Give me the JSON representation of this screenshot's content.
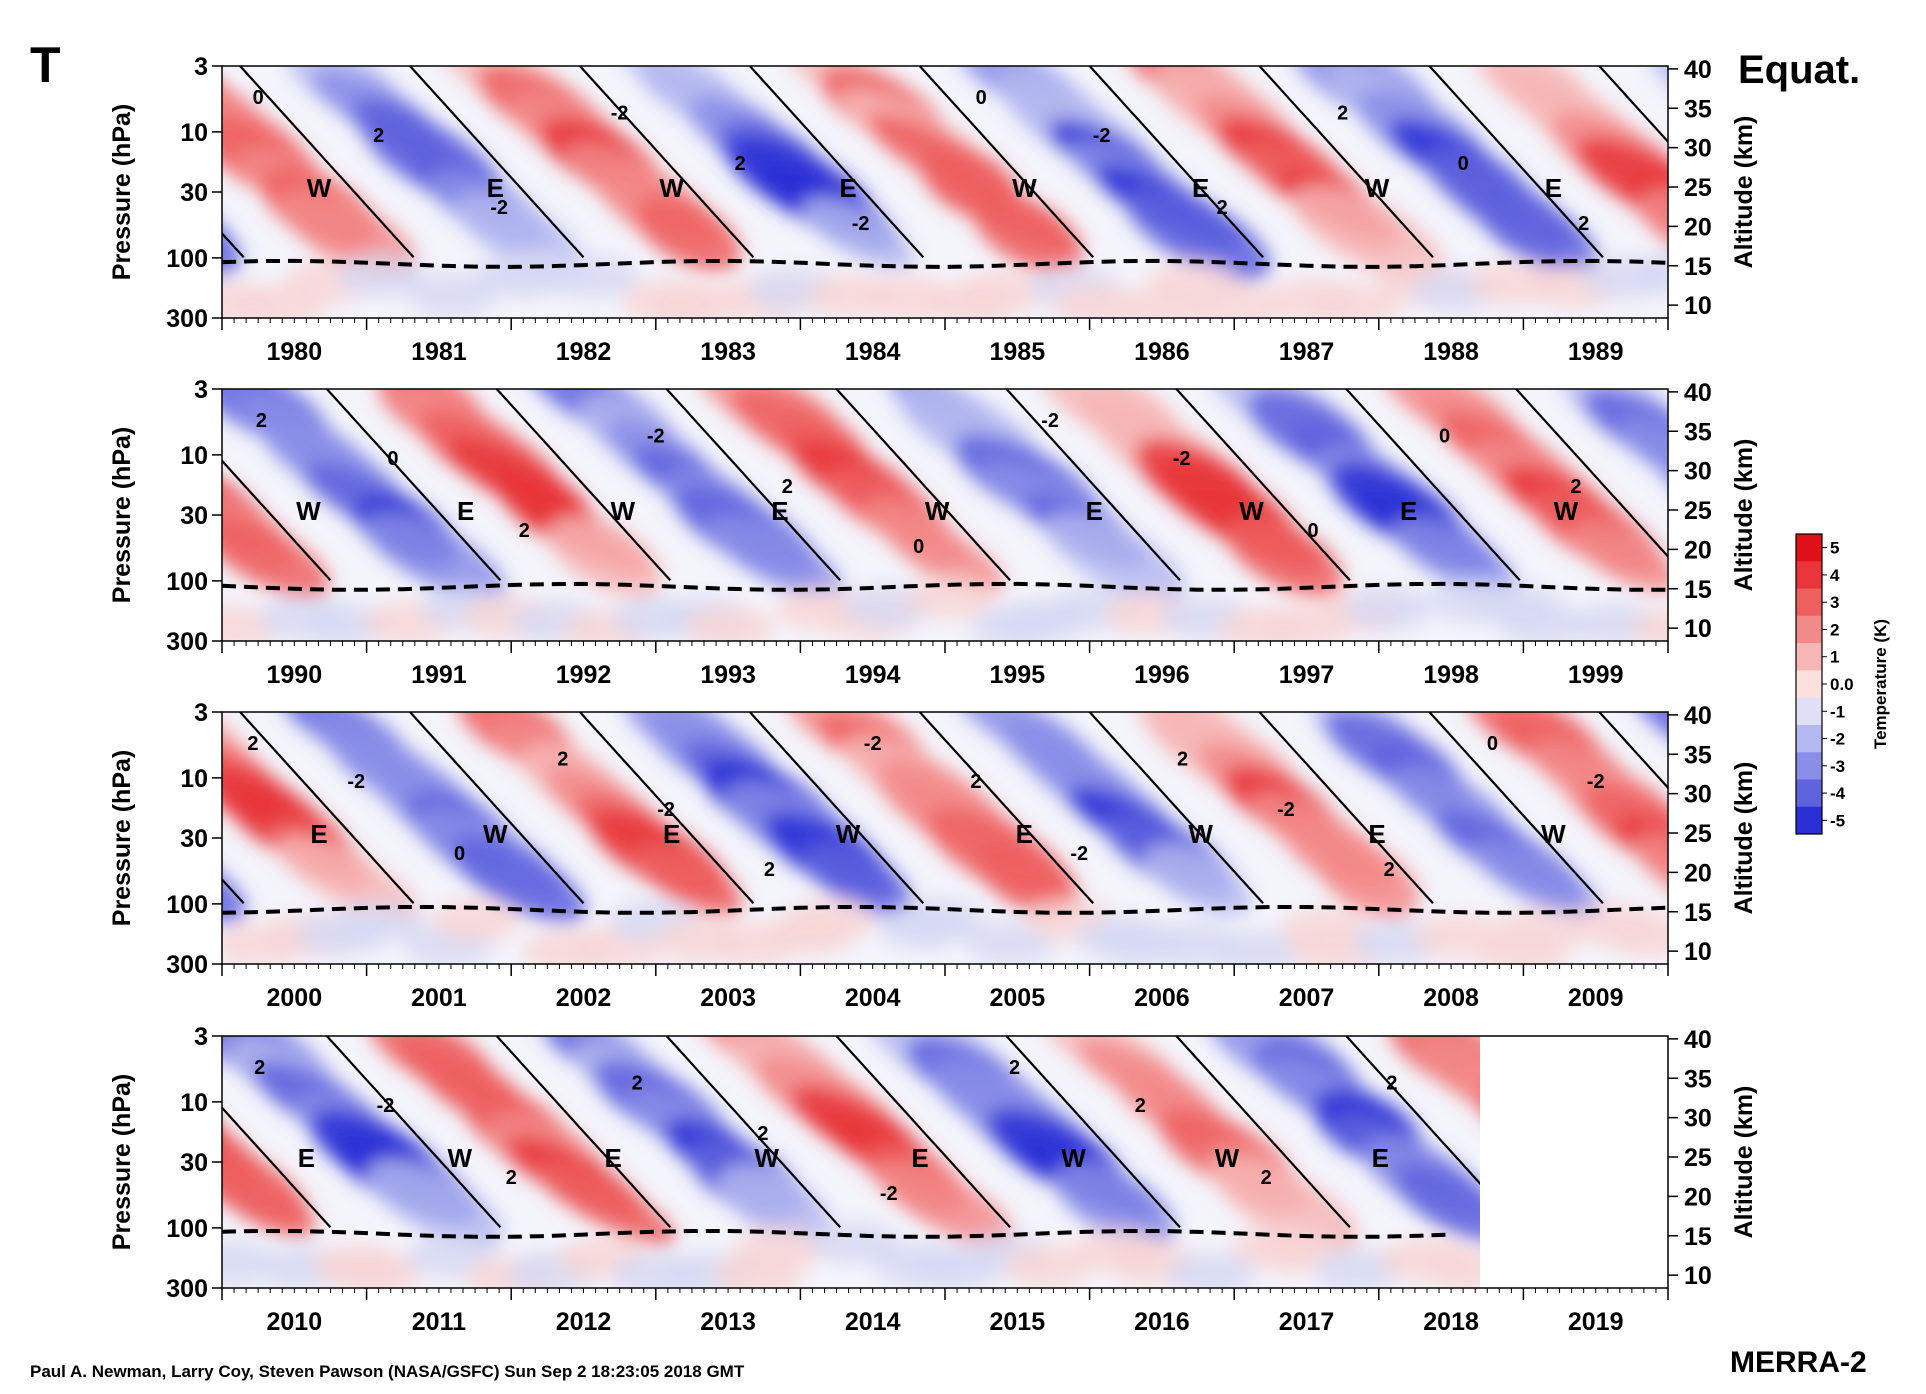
{
  "figure": {
    "variable_label": "T",
    "region_label": "Equat.",
    "credit": "Paul A. Newman, Larry Coy, Steven Pawson (NASA/GSFC) Sun Sep  2 18:23:05 2018 GMT",
    "product": "MERRA-2"
  },
  "chart_data": [
    {
      "type": "heatmap",
      "title": "",
      "xlabel": "",
      "ylabel": "Pressure (hPa)",
      "y2label": "Altitude (km)",
      "x_ticks": [
        "1980",
        "1981",
        "1982",
        "1983",
        "1984",
        "1985",
        "1986",
        "1987",
        "1988",
        "1989"
      ],
      "y_ticks": [
        "3",
        "10",
        "30",
        "100",
        "300"
      ],
      "y2_ticks": [
        "40",
        "35",
        "30",
        "25",
        "20",
        "15",
        "10"
      ],
      "x_range": [
        1979.5,
        1989.5
      ],
      "y_range_hpa": [
        300,
        3
      ],
      "phase_labels": [
        "W",
        "E",
        "W",
        "E",
        "W",
        "E",
        "W",
        "E"
      ],
      "contour_labels": [
        "0",
        "2",
        "-2",
        "-2",
        "2",
        "-2",
        "0",
        "-2",
        "2",
        "2",
        "0",
        "2"
      ],
      "values_note": "filled contours of equatorial temperature anomaly (K)",
      "tropopause": "dashed line near 100 hPa",
      "data_end": 1989.5
    },
    {
      "type": "heatmap",
      "title": "",
      "xlabel": "",
      "ylabel": "Pressure (hPa)",
      "y2label": "Altitude (km)",
      "x_ticks": [
        "1990",
        "1991",
        "1992",
        "1993",
        "1994",
        "1995",
        "1996",
        "1997",
        "1998",
        "1999"
      ],
      "y_ticks": [
        "3",
        "10",
        "30",
        "100",
        "300"
      ],
      "y2_ticks": [
        "40",
        "35",
        "30",
        "25",
        "20",
        "15",
        "10"
      ],
      "x_range": [
        1989.5,
        1999.5
      ],
      "y_range_hpa": [
        300,
        3
      ],
      "phase_labels": [
        "W",
        "E",
        "W",
        "E",
        "W",
        "E",
        "W",
        "E",
        "W"
      ],
      "contour_labels": [
        "2",
        "0",
        "2",
        "-2",
        "2",
        "0",
        "-2",
        "-2",
        "0",
        "0",
        "2"
      ],
      "tropopause": "dashed line near 100 hPa",
      "data_end": 1999.5
    },
    {
      "type": "heatmap",
      "title": "",
      "xlabel": "",
      "ylabel": "Pressure (hPa)",
      "y2label": "Altitude (km)",
      "x_ticks": [
        "2000",
        "2001",
        "2002",
        "2003",
        "2004",
        "2005",
        "2006",
        "2007",
        "2008",
        "2009"
      ],
      "y_ticks": [
        "3",
        "10",
        "30",
        "100",
        "300"
      ],
      "y2_ticks": [
        "40",
        "35",
        "30",
        "25",
        "20",
        "15",
        "10"
      ],
      "x_range": [
        1999.5,
        2009.5
      ],
      "y_range_hpa": [
        300,
        3
      ],
      "phase_labels": [
        "E",
        "W",
        "E",
        "W",
        "E",
        "W",
        "E",
        "W"
      ],
      "contour_labels": [
        "2",
        "-2",
        "0",
        "2",
        "-2",
        "2",
        "-2",
        "2",
        "-2",
        "2",
        "-2",
        "2",
        "0",
        "-2"
      ],
      "tropopause": "dashed line near 100 hPa",
      "data_end": 2009.5
    },
    {
      "type": "heatmap",
      "title": "",
      "xlabel": "",
      "ylabel": "Pressure (hPa)",
      "y2label": "Altitude (km)",
      "x_ticks": [
        "2010",
        "2011",
        "2012",
        "2013",
        "2014",
        "2015",
        "2016",
        "2017",
        "2018",
        "2019"
      ],
      "y_ticks": [
        "3",
        "10",
        "30",
        "100",
        "300"
      ],
      "y2_ticks": [
        "40",
        "35",
        "30",
        "25",
        "20",
        "15",
        "10"
      ],
      "x_range": [
        2009.5,
        2019.5
      ],
      "y_range_hpa": [
        300,
        3
      ],
      "phase_labels": [
        "E",
        "W",
        "E",
        "W",
        "E",
        "W",
        "W",
        "E"
      ],
      "contour_labels": [
        "2",
        "-2",
        "2",
        "2",
        "2",
        "-2",
        "2",
        "2",
        "2",
        "2"
      ],
      "tropopause": "dashed line near 100 hPa",
      "data_end": 2018.2
    }
  ],
  "colorbar": {
    "label": "Temperature (K)",
    "ticks": [
      "5",
      "4",
      "3",
      "2",
      "1",
      "0.0",
      "-1",
      "-2",
      "-3",
      "-4",
      "-5"
    ],
    "colors": [
      "#e0101a",
      "#e8363a",
      "#ee6060",
      "#f38a8a",
      "#f7b6b6",
      "#fbe0e0",
      "#dfe0f7",
      "#b4b8f0",
      "#8a8ee8",
      "#5f63de",
      "#2a2fd6"
    ]
  }
}
